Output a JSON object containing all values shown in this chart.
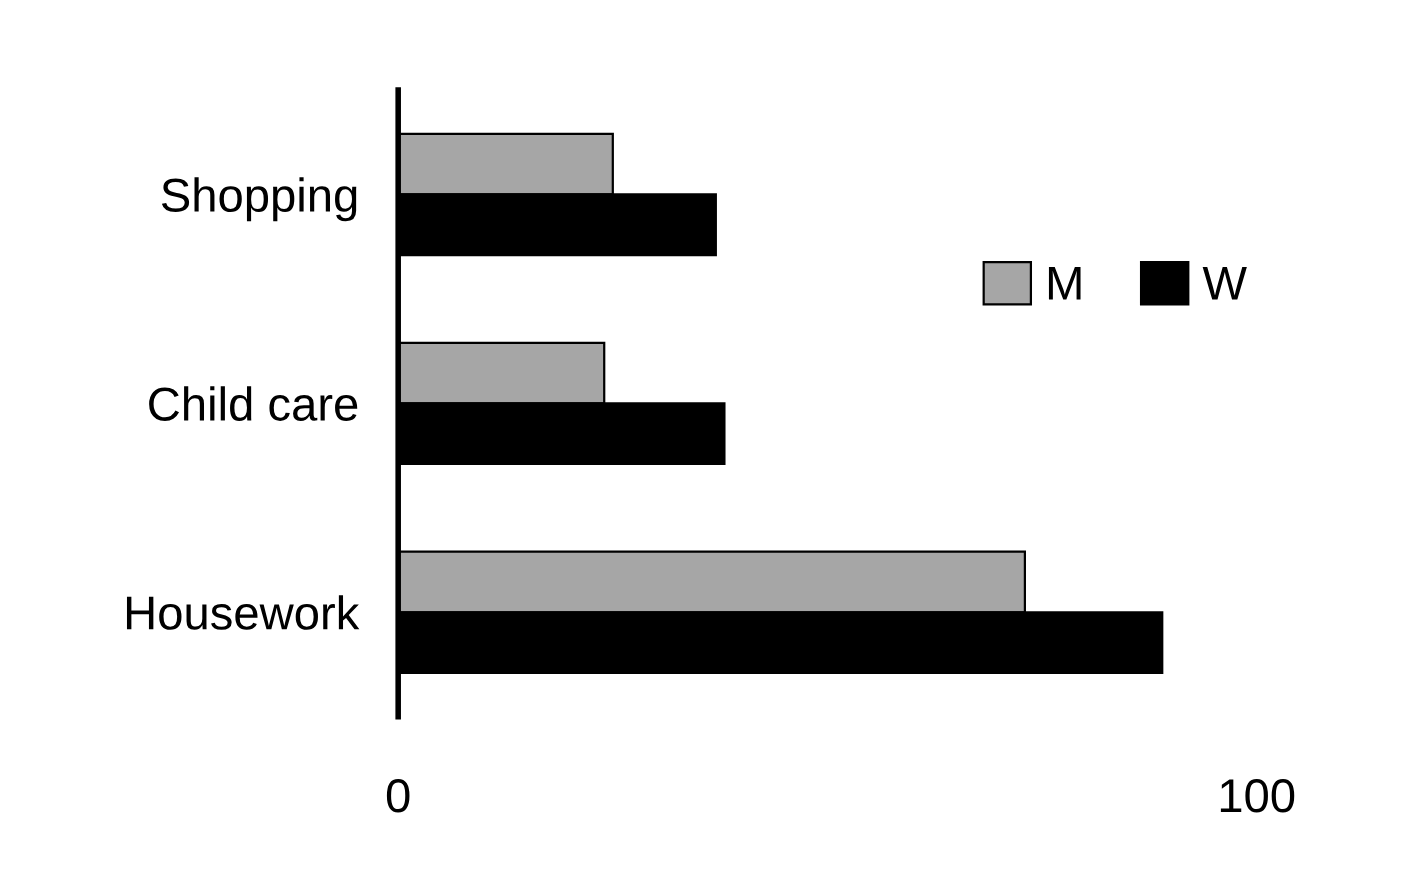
{
  "chart_data": {
    "type": "bar",
    "orientation": "horizontal",
    "categories": [
      "Shopping",
      "Child care",
      "Housework"
    ],
    "series": [
      {
        "name": "M",
        "color": "#a6a6a6",
        "values": [
          25,
          24,
          73
        ]
      },
      {
        "name": "W",
        "color": "#000000",
        "values": [
          37,
          38,
          89
        ]
      }
    ],
    "xlim": [
      0,
      100
    ],
    "xticks": [
      0,
      100
    ],
    "grid": false,
    "legend": "right"
  }
}
